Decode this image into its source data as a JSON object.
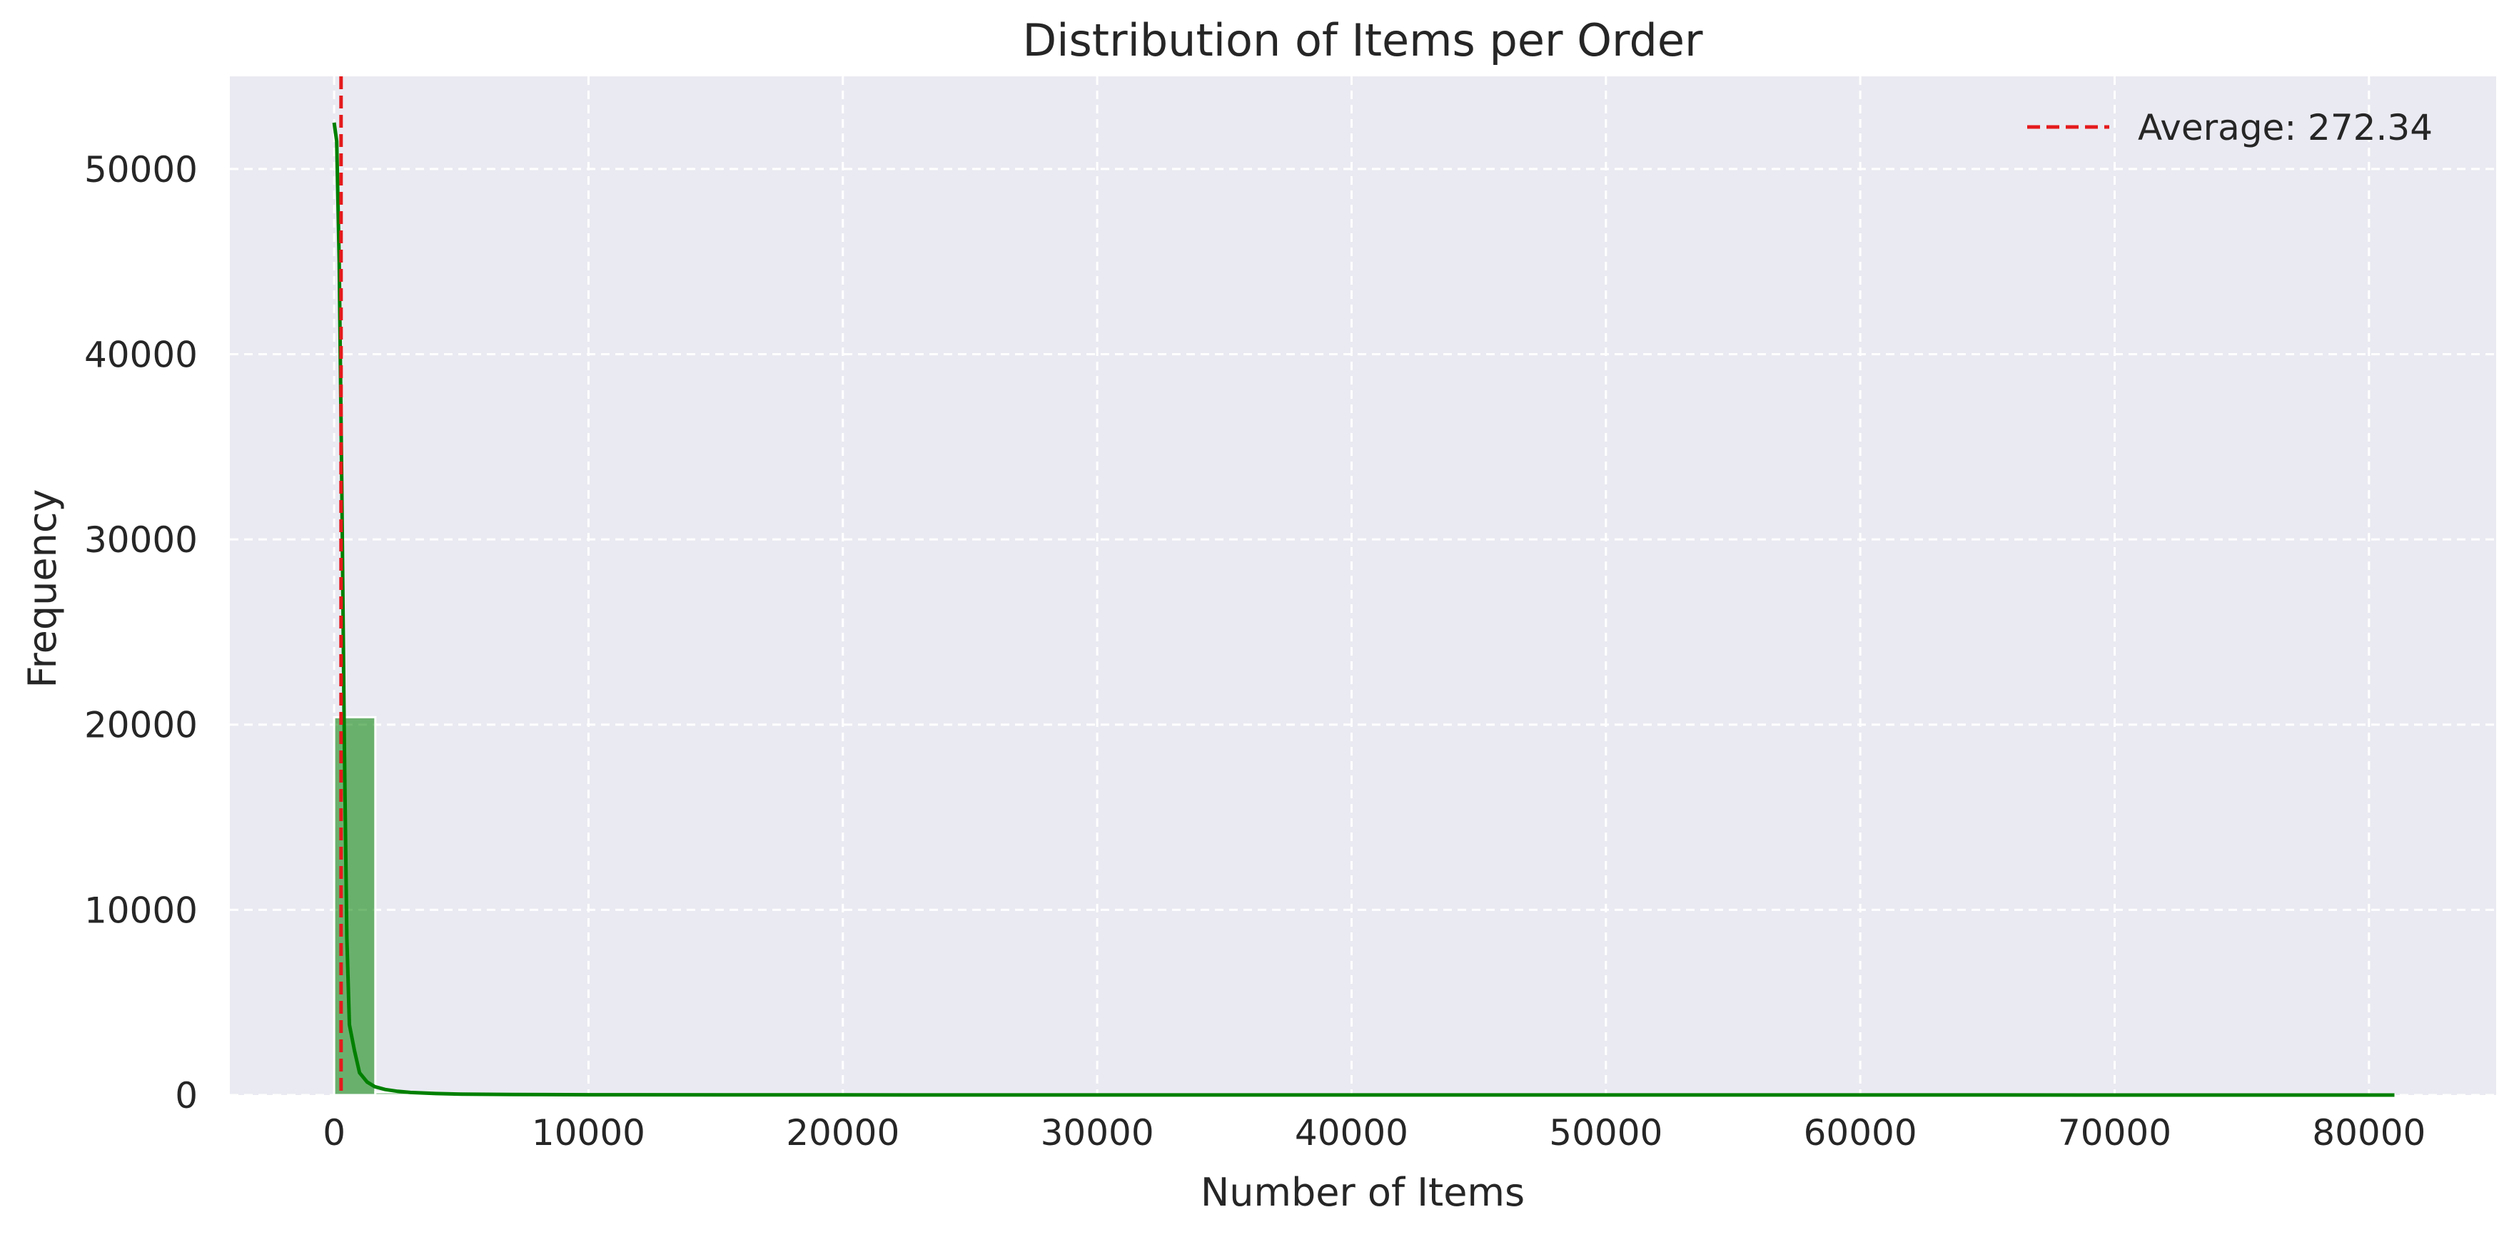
{
  "chart_data": {
    "type": "bar",
    "title": "Distribution of Items per Order",
    "xlabel": "Number of Items",
    "ylabel": "Frequency",
    "xlim": [
      -4100,
      85000
    ],
    "ylim": [
      0,
      55000
    ],
    "xticks": [
      0,
      10000,
      20000,
      30000,
      40000,
      50000,
      60000,
      70000,
      80000
    ],
    "yticks": [
      0,
      10000,
      20000,
      30000,
      40000,
      50000
    ],
    "grid": true,
    "bins": [
      {
        "x0": 0,
        "x1": 1620,
        "count": 20400
      },
      {
        "x0": 1620,
        "x1": 3240,
        "count": 150
      },
      {
        "x0": 3240,
        "x1": 4860,
        "count": 40
      },
      {
        "x0": 4860,
        "x1": 6480,
        "count": 15
      },
      {
        "x0": 6480,
        "x1": 8100,
        "count": 8
      },
      {
        "x0": 8100,
        "x1": 81000,
        "count": 5
      }
    ],
    "bar_color": "#008000",
    "kde": {
      "name": "",
      "color": "#008000",
      "x": [
        0,
        100,
        200,
        300,
        400,
        500,
        600,
        800,
        1000,
        1300,
        1600,
        2000,
        2500,
        3000,
        4000,
        5000,
        7000,
        10000,
        20000,
        40000,
        60000,
        81000
      ],
      "y": [
        52500,
        51500,
        45000,
        33000,
        19000,
        8500,
        3800,
        2400,
        1200,
        700,
        450,
        300,
        200,
        140,
        80,
        50,
        30,
        15,
        8,
        4,
        2,
        1
      ]
    },
    "average_line": {
      "label": "Average: 272.34",
      "x": 272.34,
      "color": "#e41a1c"
    },
    "legend_position": "top-right"
  }
}
